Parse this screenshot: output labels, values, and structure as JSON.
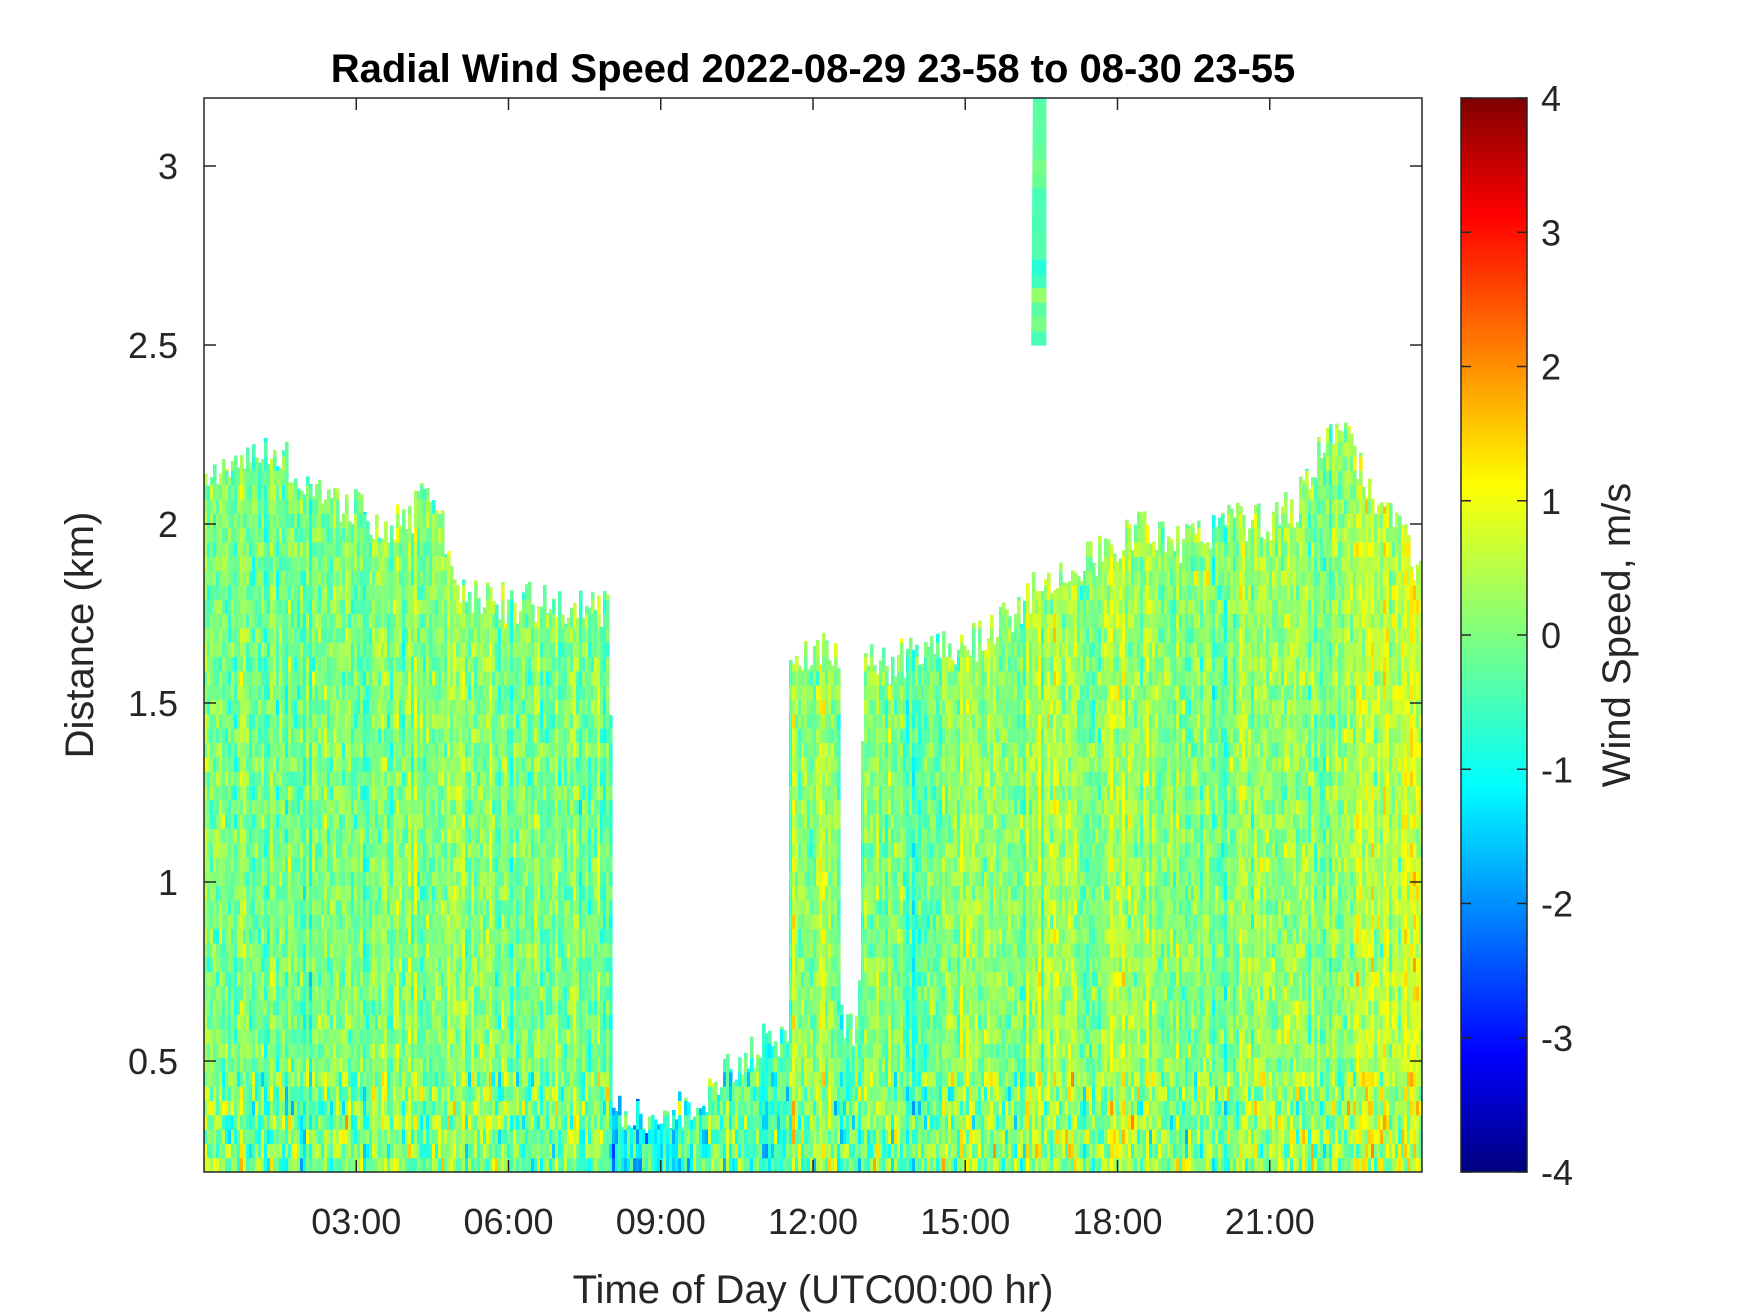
{
  "chart_data": {
    "type": "heatmap",
    "title": "Radial Wind Speed 2022-08-29 23-58 to 08-30 23-55",
    "xlabel": "Time of Day (UTC00:00 hr)",
    "ylabel": "Distance (km)",
    "colorbar_label": "Wind Speed, m/s",
    "x_unit": "hour of day",
    "xlim": [
      0,
      24
    ],
    "ylim": [
      0.19,
      3.19
    ],
    "clim": [
      -4,
      4
    ],
    "colormap": "jet",
    "x_ticks": [
      {
        "value": 3,
        "label": "03:00"
      },
      {
        "value": 6,
        "label": "06:00"
      },
      {
        "value": 9,
        "label": "09:00"
      },
      {
        "value": 12,
        "label": "12:00"
      },
      {
        "value": 15,
        "label": "15:00"
      },
      {
        "value": 18,
        "label": "18:00"
      },
      {
        "value": 21,
        "label": "21:00"
      }
    ],
    "y_ticks": [
      {
        "value": 0.5,
        "label": "0.5"
      },
      {
        "value": 1,
        "label": "1"
      },
      {
        "value": 1.5,
        "label": "1.5"
      },
      {
        "value": 2,
        "label": "2"
      },
      {
        "value": 2.5,
        "label": "2.5"
      },
      {
        "value": 3,
        "label": "3"
      }
    ],
    "colorbar_ticks": [
      {
        "value": 4,
        "label": "4"
      },
      {
        "value": 3,
        "label": "3"
      },
      {
        "value": 2,
        "label": "2"
      },
      {
        "value": 1,
        "label": "1"
      },
      {
        "value": 0,
        "label": "0"
      },
      {
        "value": -1,
        "label": "-1"
      },
      {
        "value": -2,
        "label": "-2"
      },
      {
        "value": -3,
        "label": "-3"
      },
      {
        "value": -4,
        "label": "-4"
      }
    ],
    "data_top_profile": {
      "hours": [
        0,
        0.5,
        1,
        1.5,
        2,
        2.5,
        3,
        3.5,
        4,
        4.5,
        5,
        5.5,
        6,
        6.5,
        7,
        7.5,
        8,
        8.05,
        8.5,
        9,
        9.5,
        10,
        10.5,
        11,
        11.5,
        11.55,
        12,
        12.5,
        12.55,
        12.9,
        13,
        13.5,
        14,
        14.5,
        15,
        15.5,
        16,
        16.5,
        17,
        17.5,
        18,
        18.5,
        19,
        19.5,
        20,
        20.5,
        21,
        21.5,
        22,
        22.5,
        23,
        23.5,
        24
      ],
      "top_km": [
        2.12,
        2.15,
        2.2,
        2.2,
        2.1,
        2.05,
        2.05,
        2.0,
        2.0,
        2.1,
        1.8,
        1.78,
        1.78,
        1.78,
        1.78,
        1.78,
        1.75,
        0.35,
        0.35,
        0.35,
        0.36,
        0.4,
        0.5,
        0.55,
        0.55,
        1.65,
        1.65,
        1.65,
        0.6,
        0.6,
        1.62,
        1.6,
        1.65,
        1.65,
        1.65,
        1.7,
        1.75,
        1.85,
        1.85,
        1.9,
        1.95,
        2.0,
        1.95,
        1.95,
        2.0,
        2.0,
        2.0,
        2.05,
        2.2,
        2.25,
        2.1,
        2.0,
        1.85
      ],
      "mean_speed_ms": [
        0.0,
        -0.1,
        0.1,
        0.0,
        -0.2,
        0.1,
        0.0,
        0.1,
        -0.1,
        0.0,
        0.2,
        0.0,
        -0.1,
        0.0,
        0.0,
        -0.1,
        -0.2,
        -1.0,
        -1.0,
        -0.8,
        -0.5,
        -0.3,
        -0.2,
        -0.4,
        -0.3,
        0.1,
        0.2,
        0.3,
        -0.2,
        -0.3,
        0.0,
        -0.1,
        -0.3,
        0.0,
        0.5,
        0.2,
        0.0,
        0.3,
        0.4,
        0.1,
        0.3,
        0.4,
        0.2,
        0.1,
        0.0,
        0.2,
        0.3,
        0.1,
        0.0,
        0.3,
        0.4,
        0.5,
        0.6
      ]
    },
    "noise_plume": {
      "hour_start": 16.3,
      "hour_end": 16.6,
      "km_start": 2.5,
      "km_end": 3.19
    }
  }
}
